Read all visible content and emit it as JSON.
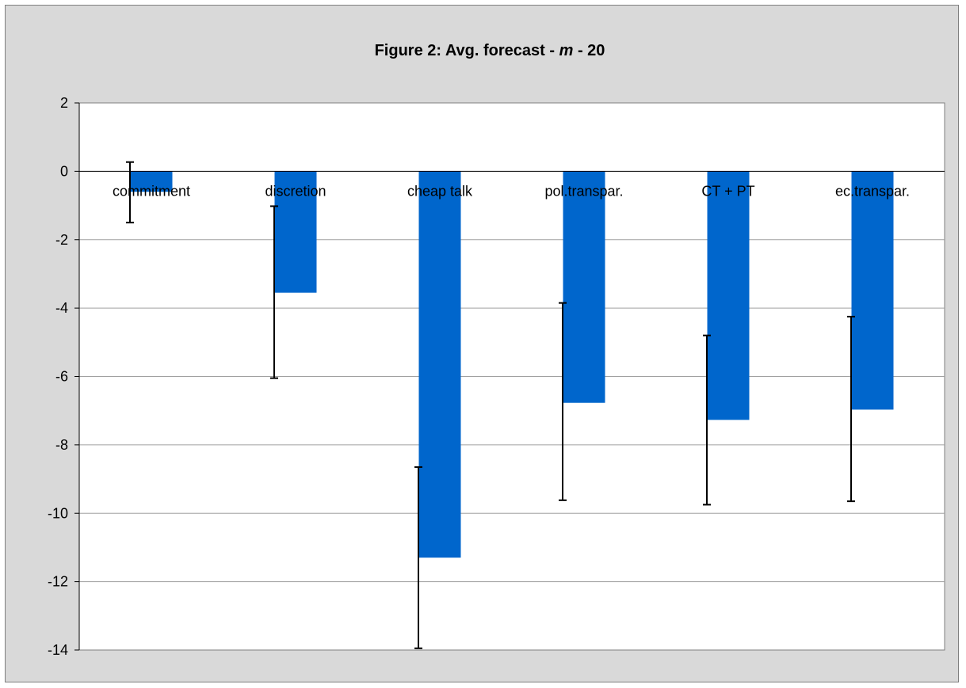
{
  "chart_data": {
    "type": "bar",
    "title_main": "Figure 2: Avg. forecast - ",
    "title_italic": "m",
    "title_end": " - 20",
    "categories": [
      "commitment",
      "discretion",
      "cheap talk",
      "pol.transpar.",
      "CT + PT",
      "ec.transpar."
    ],
    "values": [
      -0.6,
      -3.55,
      -11.3,
      -6.77,
      -7.27,
      -6.97
    ],
    "error_bars": [
      {
        "low": -1.5,
        "high": 0.27
      },
      {
        "low": -6.05,
        "high": -1.02
      },
      {
        "low": -13.95,
        "high": -8.65
      },
      {
        "low": -9.62,
        "high": -3.85
      },
      {
        "low": -9.75,
        "high": -4.8
      },
      {
        "low": -9.65,
        "high": -4.25
      }
    ],
    "ylim": [
      -14,
      2
    ],
    "yticks": [
      2,
      0,
      -2,
      -4,
      -6,
      -8,
      -10,
      -12,
      -14
    ],
    "xlabel": "",
    "ylabel": "",
    "grid": true,
    "colors": {
      "bar": "#0066cc",
      "chart_bg": "#d9d9d9",
      "plot_bg": "#ffffff",
      "grid": "#a0a0a0",
      "axis": "#000000"
    }
  }
}
